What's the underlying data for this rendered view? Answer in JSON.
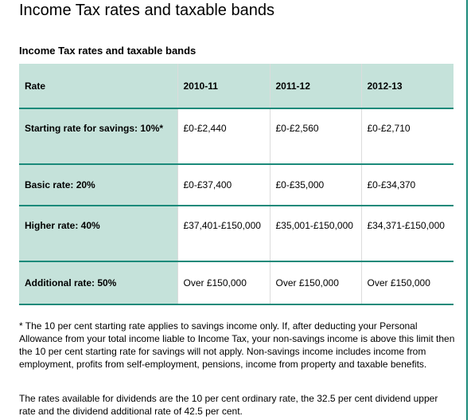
{
  "page": {
    "title": "Income Tax rates and taxable bands"
  },
  "table": {
    "caption": "Income Tax rates and taxable bands",
    "headers": [
      "Rate",
      "2010-11",
      "2011-12",
      "2012-13"
    ],
    "rows": [
      {
        "rate": "Starting rate for savings: 10%*",
        "values": [
          "£0-£2,440",
          "£0-£2,560",
          "£0-£2,710"
        ]
      },
      {
        "rate": "Basic rate: 20%",
        "values": [
          "£0-£37,400",
          "£0-£35,000",
          "£0-£34,370"
        ]
      },
      {
        "rate": "Higher rate: 40%",
        "values": [
          "£37,401-£150,000",
          "£35,001-£150,000",
          "£34,371-£150,000"
        ]
      },
      {
        "rate": "Additional rate: 50%",
        "values": [
          "Over £150,000",
          "Over £150,000",
          "Over £150,000"
        ]
      }
    ]
  },
  "notes": {
    "footnote": "* The 10 per cent starting rate applies to savings income only. If, after deducting your Personal Allowance from your total income liable to Income Tax, your non-savings income is above this limit then the 10 per cent starting rate for savings will not apply. Non-savings income includes income from employment, profits from self-employment, pensions, income from property and taxable benefits.",
    "dividends": "The rates available for dividends are the 10 per cent ordinary rate, the 32.5 per cent dividend upper rate and the dividend additional rate of 42.5 per cent."
  },
  "colors": {
    "header_bg": "#c5e2da",
    "rule": "#1b8a7a"
  }
}
